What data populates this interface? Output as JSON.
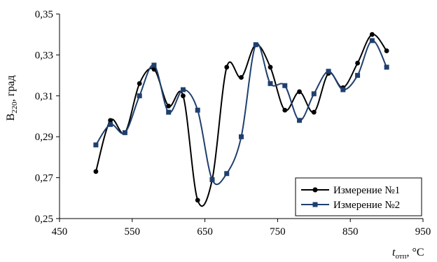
{
  "chart_data": {
    "type": "line",
    "title": "",
    "ylabel": {
      "main": "B",
      "sub": "220",
      "rest": ", град"
    },
    "xlabel": {
      "main": "t",
      "sub": "отп",
      "rest": ", °C"
    },
    "xlim": [
      450,
      950
    ],
    "ylim": [
      0.25,
      0.35
    ],
    "x_ticks": [
      450,
      550,
      650,
      750,
      850,
      950
    ],
    "x_tick_labels": [
      "450",
      "550",
      "650",
      "750",
      "850",
      "950"
    ],
    "y_ticks": [
      0.25,
      0.27,
      0.29,
      0.31,
      0.33,
      0.35
    ],
    "y_tick_labels": [
      "0,25",
      "0,27",
      "0,29",
      "0,31",
      "0,33",
      "0,35"
    ],
    "grid": false,
    "legend_position": "bottom-right",
    "series": [
      {
        "name": "Измерение №1",
        "color": "#000000",
        "marker": "circle",
        "x": [
          500,
          520,
          540,
          560,
          580,
          600,
          620,
          640,
          660,
          680,
          700,
          720,
          740,
          760,
          780,
          800,
          820,
          840,
          860,
          880,
          900
        ],
        "y": [
          0.273,
          0.298,
          0.292,
          0.316,
          0.323,
          0.305,
          0.31,
          0.259,
          0.269,
          0.324,
          0.319,
          0.335,
          0.324,
          0.303,
          0.312,
          0.302,
          0.321,
          0.314,
          0.326,
          0.34,
          0.332
        ]
      },
      {
        "name": "Измерение №2",
        "color": "#1f3f6e",
        "marker": "square",
        "x": [
          500,
          520,
          540,
          560,
          580,
          600,
          620,
          640,
          660,
          680,
          700,
          720,
          740,
          760,
          780,
          800,
          820,
          840,
          860,
          880,
          900
        ],
        "y": [
          0.286,
          0.296,
          0.292,
          0.31,
          0.325,
          0.302,
          0.313,
          0.303,
          0.269,
          0.272,
          0.29,
          0.335,
          0.316,
          0.315,
          0.298,
          0.311,
          0.322,
          0.313,
          0.32,
          0.337,
          0.324
        ]
      }
    ]
  }
}
